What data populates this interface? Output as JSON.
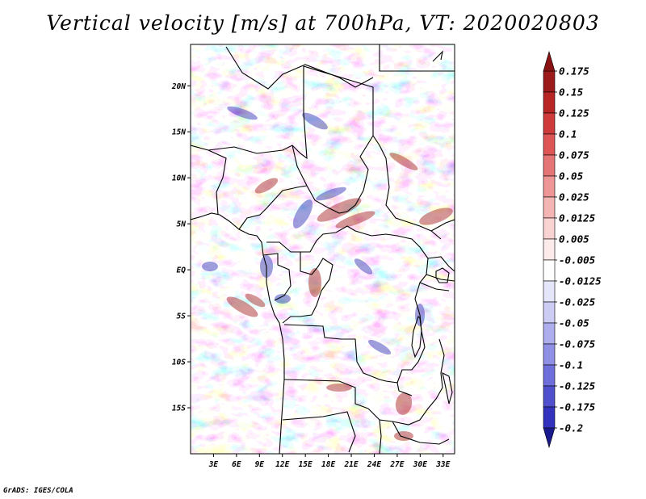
{
  "title": "Vertical velocity [m/s] at 700hPa, VT: 2020020803",
  "credit": "GrADS: IGES/COLA",
  "map": {
    "projection": "lat-lon",
    "lon_range": [
      0,
      34.5
    ],
    "lat_range": [
      -20,
      24.5
    ],
    "lon_ticks": [
      {
        "value": 3,
        "label": "3E"
      },
      {
        "value": 6,
        "label": "6E"
      },
      {
        "value": 9,
        "label": "9E"
      },
      {
        "value": 12,
        "label": "12E"
      },
      {
        "value": 15,
        "label": "15E"
      },
      {
        "value": 18,
        "label": "18E"
      },
      {
        "value": 21,
        "label": "21E"
      },
      {
        "value": 24,
        "label": "24E"
      },
      {
        "value": 27,
        "label": "27E"
      },
      {
        "value": 30,
        "label": "30E"
      },
      {
        "value": 33,
        "label": "33E"
      }
    ],
    "lat_ticks": [
      {
        "value": 20,
        "label": "20N"
      },
      {
        "value": 15,
        "label": "15N"
      },
      {
        "value": 10,
        "label": "10N"
      },
      {
        "value": 5,
        "label": "5N"
      },
      {
        "value": 0,
        "label": "EQ"
      },
      {
        "value": -5,
        "label": "5S"
      },
      {
        "value": -10,
        "label": "10S"
      },
      {
        "value": -15,
        "label": "15S"
      }
    ],
    "colors": {
      "land_border": "#000000",
      "upward_hotspots": "#a01818",
      "downward_hotspots": "#2828b4"
    }
  },
  "colorbar": {
    "levels": [
      {
        "label": "0.175",
        "color": "#9c1a1a"
      },
      {
        "label": "0.15",
        "color": "#b82525"
      },
      {
        "label": "0.125",
        "color": "#cf3b3b"
      },
      {
        "label": "0.1",
        "color": "#dd5555"
      },
      {
        "label": "0.075",
        "color": "#e57575"
      },
      {
        "label": "0.05",
        "color": "#ee9595"
      },
      {
        "label": "0.025",
        "color": "#f4b5b5"
      },
      {
        "label": "0.0125",
        "color": "#f9d2d2"
      },
      {
        "label": "0.005",
        "color": "#fdeaea"
      },
      {
        "label": "-0.005",
        "color": "#ffffff"
      },
      {
        "label": "-0.0125",
        "color": "#e6e6fa"
      },
      {
        "label": "-0.025",
        "color": "#ccccf5"
      },
      {
        "label": "-0.05",
        "color": "#aeaeee"
      },
      {
        "label": "-0.075",
        "color": "#8f8fe6"
      },
      {
        "label": "-0.1",
        "color": "#6f6fdc"
      },
      {
        "label": "-0.125",
        "color": "#5050cf"
      },
      {
        "label": "-0.175",
        "color": "#3232be"
      },
      {
        "label": "-0.2",
        "color": "#2222a4"
      }
    ],
    "top_extension_color": "#8a1212",
    "bottom_extension_color": "#1a1a90"
  }
}
